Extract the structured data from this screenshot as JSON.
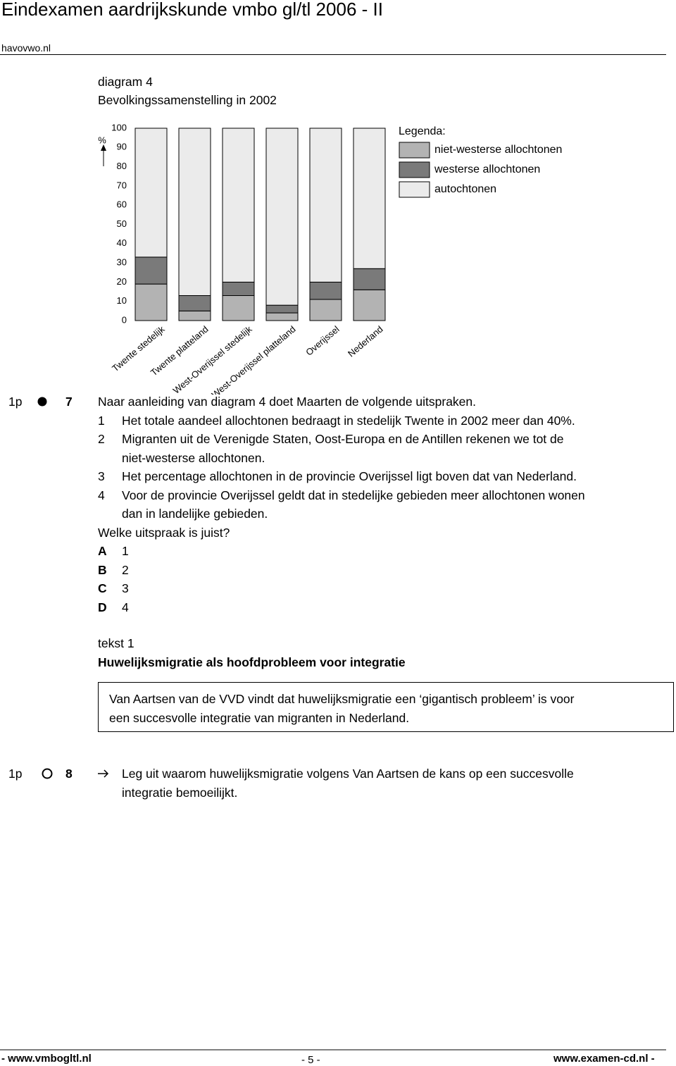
{
  "header": {
    "title": "Eindexamen aardrijkskunde vmbo gl/tl 2006 - II",
    "site": "havovwo.nl"
  },
  "diagram": {
    "label": "diagram 4",
    "title": "Bevolkingssamenstelling in 2002"
  },
  "chart_data": {
    "type": "bar",
    "stacked": true,
    "ylabel": "%",
    "legend_title": "Legenda:",
    "categories": [
      "Twente stedelijk",
      "Twente platteland",
      "West-Overijssel stedelijk",
      "West-Overijssel platteland",
      "Overijssel",
      "Nederland"
    ],
    "series": [
      {
        "name": "niet-westerse allochtonen",
        "color": "#b3b3b3",
        "values": [
          19,
          5,
          13,
          4,
          11,
          16
        ]
      },
      {
        "name": "westerse allochtonen",
        "color": "#7a7a7a",
        "values": [
          14,
          8,
          7,
          4,
          9,
          11
        ]
      },
      {
        "name": "autochtonen",
        "color": "#ebebeb",
        "values": [
          67,
          87,
          80,
          92,
          80,
          73
        ]
      }
    ],
    "ylim": [
      0,
      100
    ],
    "yticks": [
      0,
      10,
      20,
      30,
      40,
      50,
      60,
      70,
      80,
      90,
      100
    ]
  },
  "question_7": {
    "points": "1p",
    "number": "7",
    "intro": "Naar aanleiding van diagram 4 doet Maarten de volgende uitspraken.",
    "statements": [
      {
        "number": "1",
        "lines": [
          "Het totale aandeel allochtonen bedraagt in stedelijk Twente in 2002 meer dan 40%."
        ]
      },
      {
        "number": "2",
        "lines": [
          "Migranten uit de Verenigde Staten, Oost-Europa en de Antillen rekenen we tot de",
          "niet-westerse allochtonen."
        ]
      },
      {
        "number": "3",
        "lines": [
          "Het percentage allochtonen in de provincie Overijssel ligt boven dat van Nederland."
        ]
      },
      {
        "number": "4",
        "lines": [
          "Voor de provincie Overijssel geldt dat in stedelijke gebieden meer allochtonen wonen",
          "dan in landelijke gebieden."
        ]
      }
    ],
    "question": "Welke uitspraak is juist?",
    "options": [
      {
        "letter": "A",
        "text": "1"
      },
      {
        "letter": "B",
        "text": "2"
      },
      {
        "letter": "C",
        "text": "3"
      },
      {
        "letter": "D",
        "text": "4"
      }
    ]
  },
  "text_1": {
    "label": "tekst 1",
    "title": "Huwelijksmigratie als hoofdprobleem voor integratie",
    "body": [
      "Van Aartsen van de VVD vindt dat huwelijksmigratie een ‘gigantisch probleem’ is voor",
      "een succesvolle integratie van migranten in Nederland."
    ]
  },
  "question_8": {
    "points": "1p",
    "number": "8",
    "lines": [
      "Leg uit waarom huwelijksmigratie volgens Van Aartsen de kans op een succesvolle",
      "integratie bemoeilijkt."
    ]
  },
  "footer": {
    "left": "- www.vmbogltl.nl",
    "center": "- 5 -",
    "right": "www.examen-cd.nl -"
  }
}
